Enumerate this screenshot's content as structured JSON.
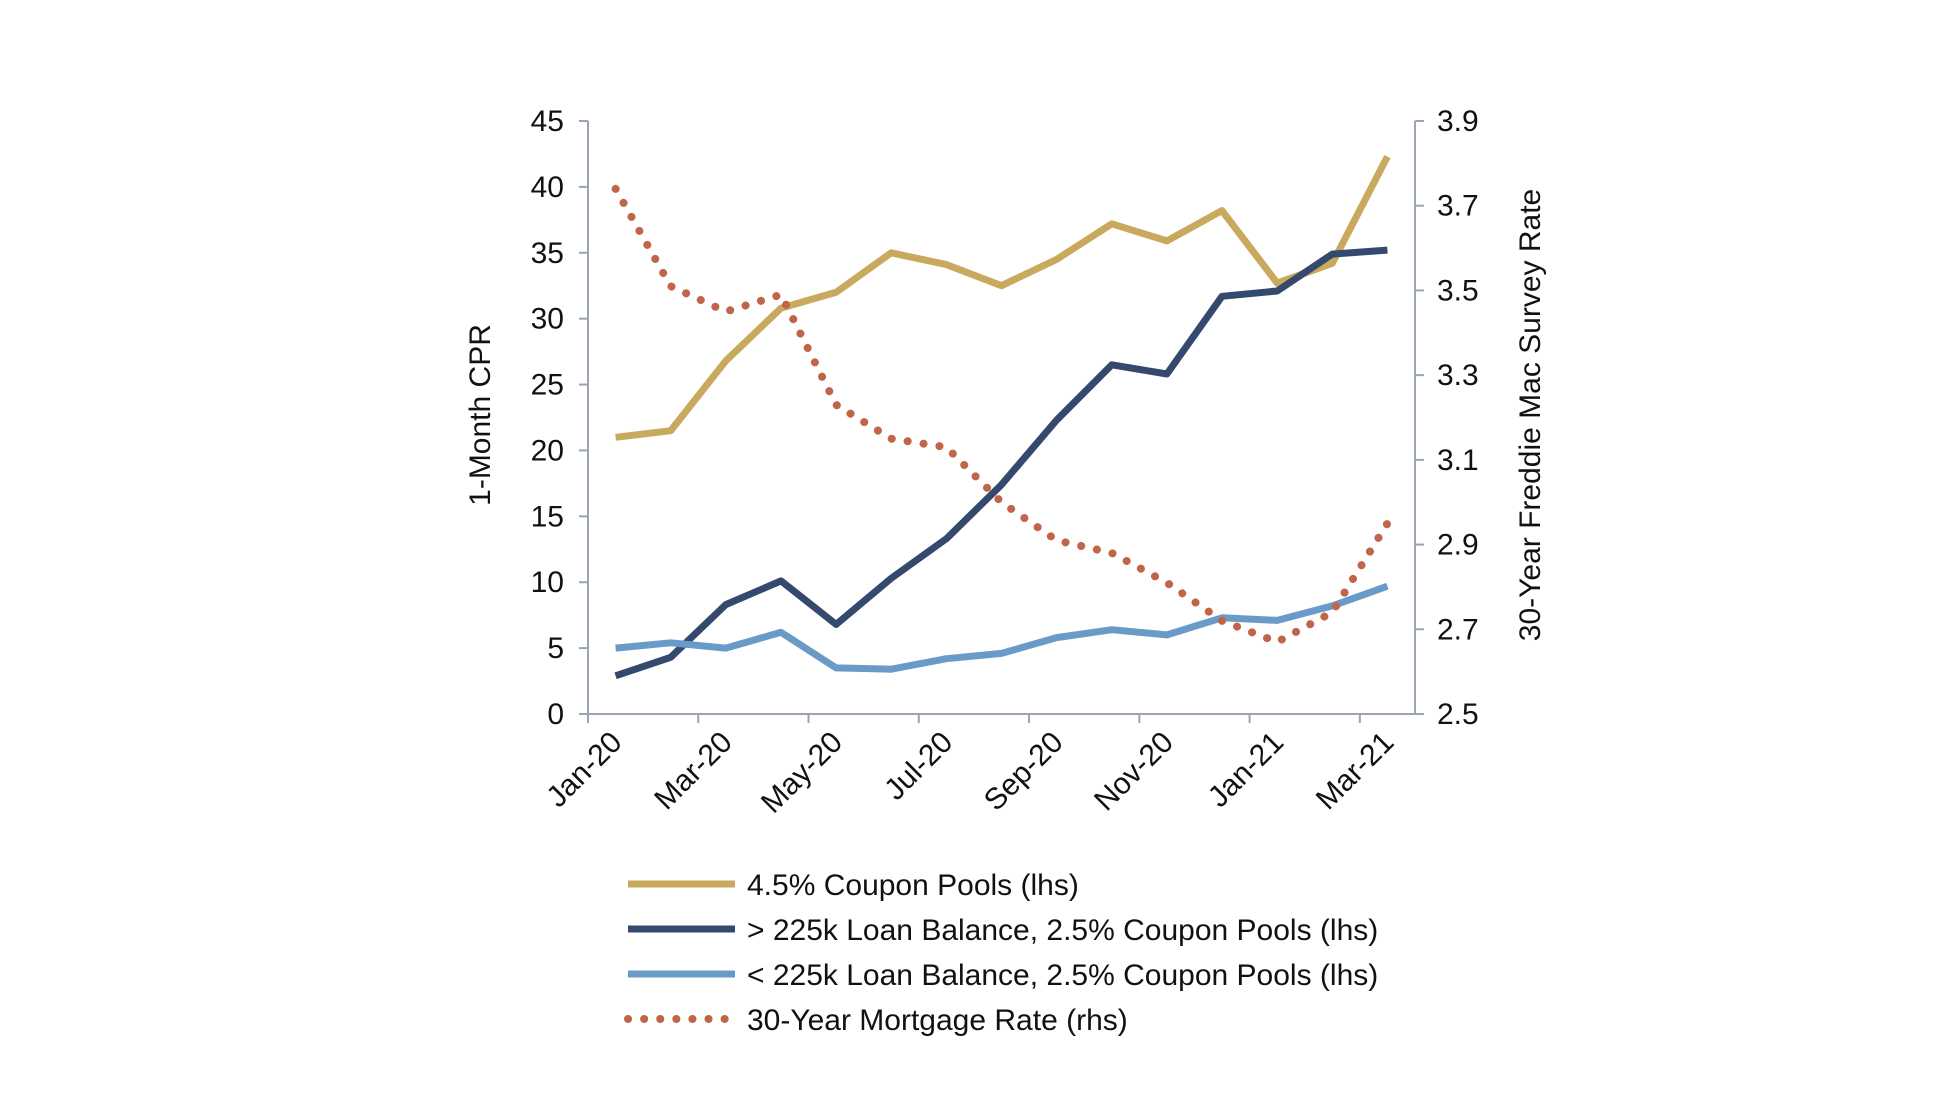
{
  "chart_data": {
    "type": "line",
    "categories": [
      "Jan-20",
      "Feb-20",
      "Mar-20",
      "Apr-20",
      "May-20",
      "Jun-20",
      "Jul-20",
      "Aug-20",
      "Sep-20",
      "Oct-20",
      "Nov-20",
      "Dec-20",
      "Jan-21",
      "Feb-21",
      "Mar-21"
    ],
    "x_tick_labels": [
      "Jan-20",
      "Mar-20",
      "May-20",
      "Jul-20",
      "Sep-20",
      "Nov-20",
      "Jan-21",
      "Mar-21"
    ],
    "ylabel": "1-Month CPR",
    "y2label": "30-Year Freddie Mac Survey Rate",
    "ylim": [
      0,
      45
    ],
    "y_ticks": [
      0,
      5,
      10,
      15,
      20,
      25,
      30,
      35,
      40,
      45
    ],
    "y2lim": [
      2.5,
      3.9
    ],
    "y2_ticks": [
      "2.5",
      "2.7",
      "2.9",
      "3.1",
      "3.3",
      "3.5",
      "3.7",
      "3.9"
    ],
    "grid": false,
    "legend_position": "bottom",
    "series": [
      {
        "name": "4.5% Coupon Pools (lhs)",
        "axis": "left",
        "style": "solid",
        "color": "#c8a95e",
        "values": [
          21.0,
          21.5,
          26.8,
          30.8,
          32.0,
          35.0,
          34.1,
          32.5,
          34.5,
          37.2,
          35.9,
          38.2,
          32.7,
          34.2,
          42.3
        ]
      },
      {
        "name": "> 225k Loan Balance, 2.5% Coupon Pools (lhs)",
        "axis": "left",
        "style": "solid",
        "color": "#34496d",
        "values": [
          2.9,
          4.3,
          8.3,
          10.1,
          6.8,
          10.3,
          13.3,
          17.4,
          22.3,
          26.5,
          25.8,
          31.7,
          32.1,
          34.9,
          35.2
        ]
      },
      {
        "name": "< 225k Loan Balance, 2.5% Coupon Pools (lhs)",
        "axis": "left",
        "style": "solid",
        "color": "#6a9ac8",
        "values": [
          5.0,
          5.4,
          5.0,
          6.2,
          3.5,
          3.4,
          4.2,
          4.6,
          5.8,
          6.4,
          6.0,
          7.3,
          7.1,
          8.2,
          9.7
        ]
      },
      {
        "name": "30-Year Mortgage Rate (rhs)",
        "axis": "right",
        "style": "dotted",
        "color": "#c0654a",
        "values": [
          3.74,
          3.51,
          3.45,
          3.49,
          3.23,
          3.15,
          3.13,
          3.0,
          2.91,
          2.88,
          2.81,
          2.72,
          2.67,
          2.74,
          2.95
        ]
      }
    ]
  }
}
